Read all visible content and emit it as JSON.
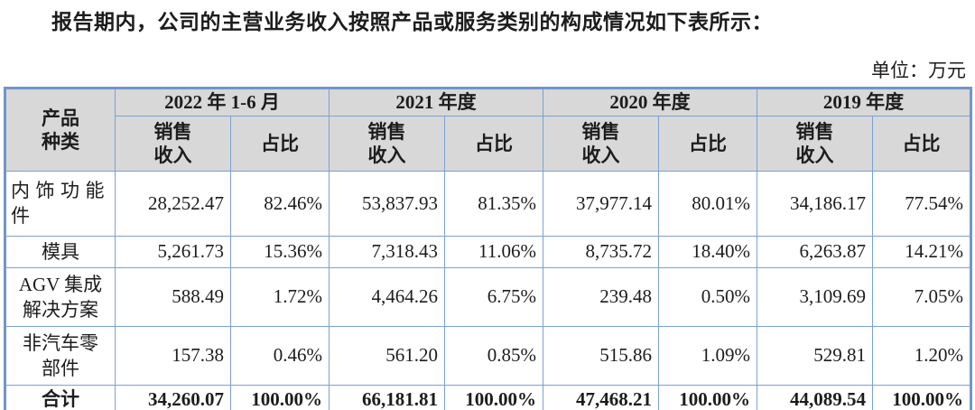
{
  "page": {
    "intro_text": "报告期内，公司的主营业务收入按照产品或服务类别的构成情况如下表所示：",
    "unit_label": "单位：万元"
  },
  "table": {
    "corner_header": "产品\n种类",
    "col_groups": [
      {
        "label": "2022 年 1-6 月"
      },
      {
        "label": "2021 年度"
      },
      {
        "label": "2020 年度"
      },
      {
        "label": "2019 年度"
      }
    ],
    "sub_headers": {
      "revenue": "销售\n收入",
      "share": "占比"
    },
    "rows": [
      {
        "label": "内饰功能\n件",
        "values": [
          "28,252.47",
          "82.46%",
          "53,837.93",
          "81.35%",
          "37,977.14",
          "80.01%",
          "34,186.17",
          "77.54%"
        ]
      },
      {
        "label": "模具",
        "values": [
          "5,261.73",
          "15.36%",
          "7,318.43",
          "11.06%",
          "8,735.72",
          "18.40%",
          "6,263.87",
          "14.21%"
        ]
      },
      {
        "label": "AGV 集成\n解决方案",
        "values": [
          "588.49",
          "1.72%",
          "4,464.26",
          "6.75%",
          "239.48",
          "0.50%",
          "3,109.69",
          "7.05%"
        ]
      },
      {
        "label": "非汽车零\n部件",
        "values": [
          "157.38",
          "0.46%",
          "561.20",
          "0.85%",
          "515.86",
          "1.09%",
          "529.81",
          "1.20%"
        ]
      }
    ],
    "total_row": {
      "label": "合计",
      "values": [
        "34,260.07",
        "100.00%",
        "66,181.81",
        "100.00%",
        "47,468.21",
        "100.00%",
        "44,089.54",
        "100.00%"
      ]
    }
  },
  "colors": {
    "border_outer": "#7196c8",
    "border_inner": "#7ba1d4",
    "header_bg": "#d8d8d8"
  }
}
